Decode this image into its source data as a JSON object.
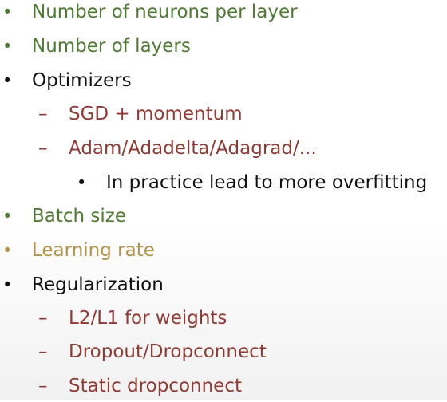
{
  "colors": {
    "green": "#4e7a33",
    "black": "#111111",
    "maroon": "#8e3b34",
    "gold": "#b4924a"
  },
  "items": [
    {
      "marker": "•",
      "text": "Number of neurons per layer",
      "color": "#4e7a33"
    },
    {
      "marker": "•",
      "text": "Number of layers",
      "color": "#4e7a33"
    },
    {
      "marker": "•",
      "text": "Optimizers",
      "color": "#111111"
    },
    {
      "marker": "–",
      "text": "SGD + momentum",
      "color": "#8e3b34"
    },
    {
      "marker": "–",
      "text": "Adam/Adadelta/Adagrad/...",
      "color": "#8e3b34"
    },
    {
      "marker": "•",
      "text": "In practice lead to more overfitting",
      "color": "#111111"
    },
    {
      "marker": "•",
      "text": "Batch size",
      "color": "#4e7a33"
    },
    {
      "marker": "•",
      "text": "Learning rate",
      "color": "#b4924a"
    },
    {
      "marker": "•",
      "text": "Regularization",
      "color": "#111111"
    },
    {
      "marker": "–",
      "text": "L2/L1 for weights",
      "color": "#8e3b34"
    },
    {
      "marker": "–",
      "text": "Dropout/Dropconnect",
      "color": "#8e3b34"
    },
    {
      "marker": "–",
      "text": "Static dropconnect",
      "color": "#8e3b34"
    }
  ]
}
